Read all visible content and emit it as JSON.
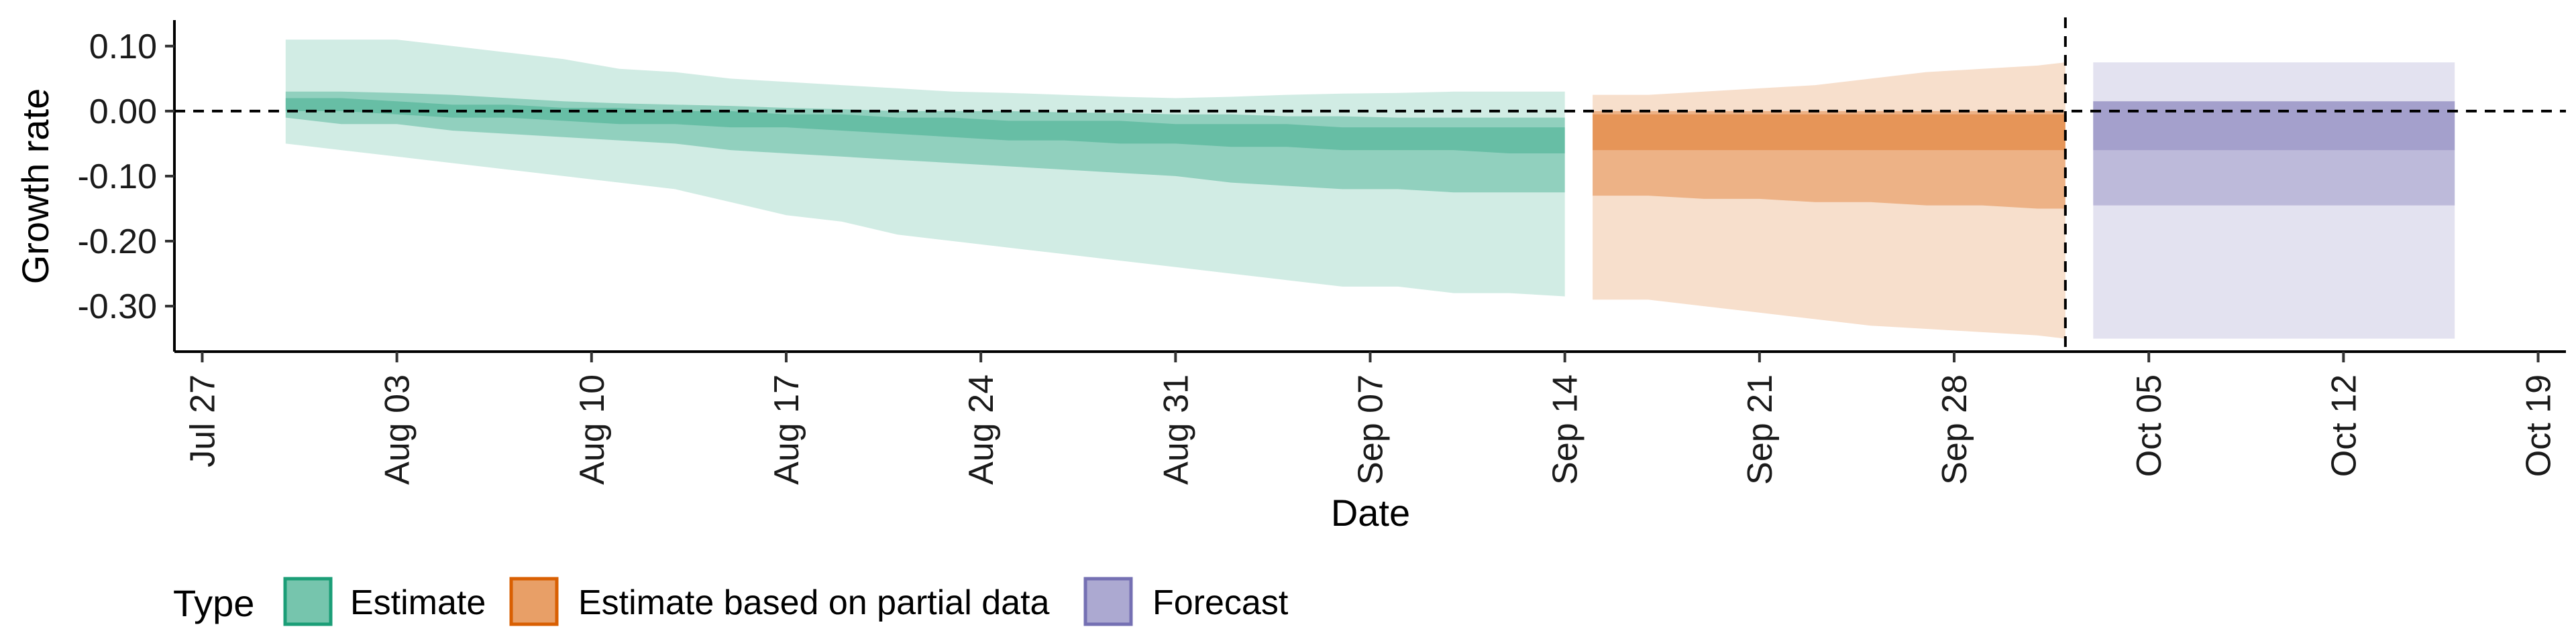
{
  "chart_data": {
    "type": "area",
    "xlabel": "Date",
    "ylabel": "Growth rate",
    "x_ticks": [
      "Jul 27",
      "Aug 03",
      "Aug 10",
      "Aug 17",
      "Aug 24",
      "Aug 31",
      "Sep 07",
      "Sep 14",
      "Sep 21",
      "Sep 28",
      "Oct 05",
      "Oct 12",
      "Oct 19"
    ],
    "y_ticks": [
      "0.10",
      "0.00",
      "-0.10",
      "-0.20",
      "-0.30"
    ],
    "y_tick_values": [
      0.1,
      0.0,
      -0.1,
      -0.2,
      -0.3
    ],
    "xlim": [
      "2020-07-26",
      "2020-10-20"
    ],
    "ylim": [
      -0.37,
      0.14
    ],
    "reference_hline": 0.0,
    "reference_vline": "2020-10-02",
    "legend_title": "Type",
    "legend_position": "bottom",
    "series": [
      {
        "name": "Estimate",
        "color": "#1b9e77",
        "dates": [
          "2020-07-30",
          "2020-08-01",
          "2020-08-03",
          "2020-08-05",
          "2020-08-07",
          "2020-08-09",
          "2020-08-11",
          "2020-08-13",
          "2020-08-15",
          "2020-08-17",
          "2020-08-19",
          "2020-08-21",
          "2020-08-23",
          "2020-08-25",
          "2020-08-27",
          "2020-08-29",
          "2020-08-31",
          "2020-09-02",
          "2020-09-04",
          "2020-09-06",
          "2020-09-08",
          "2020-09-10",
          "2020-09-12",
          "2020-09-14"
        ],
        "lower_90": [
          -0.05,
          -0.06,
          -0.07,
          -0.08,
          -0.09,
          -0.1,
          -0.11,
          -0.12,
          -0.14,
          -0.16,
          -0.17,
          -0.19,
          -0.2,
          -0.21,
          -0.22,
          -0.23,
          -0.24,
          -0.25,
          -0.26,
          -0.27,
          -0.27,
          -0.28,
          -0.28,
          -0.285
        ],
        "lower_50": [
          -0.01,
          -0.02,
          -0.02,
          -0.03,
          -0.035,
          -0.04,
          -0.045,
          -0.05,
          -0.06,
          -0.065,
          -0.07,
          -0.075,
          -0.08,
          -0.085,
          -0.09,
          -0.095,
          -0.1,
          -0.11,
          -0.115,
          -0.12,
          -0.12,
          -0.125,
          -0.125,
          -0.125
        ],
        "lower_20": [
          0.0,
          0.0,
          -0.005,
          -0.01,
          -0.01,
          -0.015,
          -0.02,
          -0.02,
          -0.025,
          -0.025,
          -0.03,
          -0.035,
          -0.04,
          -0.045,
          -0.045,
          -0.05,
          -0.05,
          -0.055,
          -0.055,
          -0.06,
          -0.06,
          -0.06,
          -0.065,
          -0.065
        ],
        "upper_20": [
          0.02,
          0.02,
          0.015,
          0.01,
          0.01,
          0.005,
          0.005,
          0.0,
          0.0,
          -0.005,
          -0.005,
          -0.01,
          -0.01,
          -0.015,
          -0.015,
          -0.015,
          -0.02,
          -0.02,
          -0.02,
          -0.025,
          -0.025,
          -0.025,
          -0.025,
          -0.025
        ],
        "upper_50": [
          0.03,
          0.03,
          0.028,
          0.025,
          0.02,
          0.015,
          0.012,
          0.01,
          0.008,
          0.005,
          0.003,
          0.0,
          0.0,
          0.0,
          -0.002,
          -0.003,
          -0.005,
          -0.005,
          -0.008,
          -0.008,
          -0.01,
          -0.01,
          -0.01,
          -0.01
        ],
        "upper_90": [
          0.11,
          0.11,
          0.11,
          0.1,
          0.09,
          0.08,
          0.065,
          0.06,
          0.05,
          0.045,
          0.04,
          0.035,
          0.03,
          0.028,
          0.025,
          0.022,
          0.02,
          0.022,
          0.025,
          0.027,
          0.028,
          0.03,
          0.03,
          0.03
        ]
      },
      {
        "name": "Estimate based on partial data",
        "color": "#d95f02",
        "dates": [
          "2020-09-15",
          "2020-09-17",
          "2020-09-19",
          "2020-09-21",
          "2020-09-23",
          "2020-09-25",
          "2020-09-27",
          "2020-09-29",
          "2020-10-01",
          "2020-10-02"
        ],
        "lower_90": [
          -0.29,
          -0.29,
          -0.3,
          -0.31,
          -0.32,
          -0.33,
          -0.335,
          -0.34,
          -0.345,
          -0.35
        ],
        "lower_50": [
          -0.13,
          -0.13,
          -0.135,
          -0.135,
          -0.14,
          -0.14,
          -0.145,
          -0.145,
          -0.15,
          -0.15
        ],
        "lower_20": [
          -0.06,
          -0.06,
          -0.06,
          -0.06,
          -0.06,
          -0.06,
          -0.06,
          -0.06,
          -0.06,
          -0.06
        ],
        "upper_20": [
          -0.005,
          -0.005,
          -0.005,
          -0.005,
          -0.005,
          -0.005,
          -0.005,
          -0.005,
          -0.005,
          -0.005
        ],
        "upper_50": [
          0.0,
          0.0,
          0.0,
          0.0,
          0.0,
          0.0,
          0.0,
          0.0,
          0.0,
          0.0
        ],
        "upper_90": [
          0.025,
          0.025,
          0.03,
          0.035,
          0.04,
          0.05,
          0.06,
          0.065,
          0.07,
          0.075
        ]
      },
      {
        "name": "Forecast",
        "color": "#7570b3",
        "dates": [
          "2020-10-03",
          "2020-10-16"
        ],
        "lower_90": [
          -0.35,
          -0.35
        ],
        "lower_50": [
          -0.145,
          -0.145
        ],
        "lower_20": [
          -0.06,
          -0.06
        ],
        "upper_20": [
          0.015,
          0.015
        ],
        "upper_50": [
          0.015,
          0.015
        ],
        "upper_90": [
          0.075,
          0.075
        ]
      }
    ]
  }
}
